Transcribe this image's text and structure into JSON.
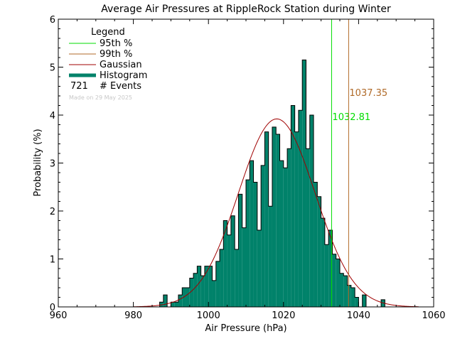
{
  "chart_data": {
    "type": "bar",
    "title": "Average Air Pressures at RippleRock Station during Winter",
    "xlabel": "Air Pressure (hPa)",
    "ylabel": "Probability (%)",
    "xlim": [
      960,
      1060
    ],
    "ylim": [
      0,
      6
    ],
    "x_ticks": [
      "960",
      "980",
      "1000",
      "1020",
      "1040",
      "1060"
    ],
    "y_ticks": [
      "0",
      "1",
      "2",
      "3",
      "4",
      "5",
      "6"
    ],
    "bin_width": 1,
    "histogram": [
      {
        "x": 987,
        "y": 0.1
      },
      {
        "x": 988,
        "y": 0.25
      },
      {
        "x": 989,
        "y": 0.0
      },
      {
        "x": 990,
        "y": 0.1
      },
      {
        "x": 991,
        "y": 0.1
      },
      {
        "x": 992,
        "y": 0.25
      },
      {
        "x": 993,
        "y": 0.4
      },
      {
        "x": 994,
        "y": 0.4
      },
      {
        "x": 995,
        "y": 0.6
      },
      {
        "x": 996,
        "y": 0.7
      },
      {
        "x": 997,
        "y": 0.85
      },
      {
        "x": 998,
        "y": 0.65
      },
      {
        "x": 999,
        "y": 0.85
      },
      {
        "x": 1000,
        "y": 0.85
      },
      {
        "x": 1001,
        "y": 0.55
      },
      {
        "x": 1002,
        "y": 0.95
      },
      {
        "x": 1003,
        "y": 1.2
      },
      {
        "x": 1004,
        "y": 1.8
      },
      {
        "x": 1005,
        "y": 1.5
      },
      {
        "x": 1006,
        "y": 1.9
      },
      {
        "x": 1007,
        "y": 1.2
      },
      {
        "x": 1008,
        "y": 2.35
      },
      {
        "x": 1009,
        "y": 1.65
      },
      {
        "x": 1010,
        "y": 2.65
      },
      {
        "x": 1011,
        "y": 3.05
      },
      {
        "x": 1012,
        "y": 2.6
      },
      {
        "x": 1013,
        "y": 1.6
      },
      {
        "x": 1014,
        "y": 2.95
      },
      {
        "x": 1015,
        "y": 3.65
      },
      {
        "x": 1016,
        "y": 2.1
      },
      {
        "x": 1017,
        "y": 3.75
      },
      {
        "x": 1018,
        "y": 3.6
      },
      {
        "x": 1019,
        "y": 3.05
      },
      {
        "x": 1020,
        "y": 2.9
      },
      {
        "x": 1021,
        "y": 3.3
      },
      {
        "x": 1022,
        "y": 4.2
      },
      {
        "x": 1023,
        "y": 3.65
      },
      {
        "x": 1024,
        "y": 4.1
      },
      {
        "x": 1025,
        "y": 5.15
      },
      {
        "x": 1026,
        "y": 3.3
      },
      {
        "x": 1027,
        "y": 4.0
      },
      {
        "x": 1028,
        "y": 2.6
      },
      {
        "x": 1029,
        "y": 2.3
      },
      {
        "x": 1030,
        "y": 1.85
      },
      {
        "x": 1031,
        "y": 1.3
      },
      {
        "x": 1032,
        "y": 1.6
      },
      {
        "x": 1033,
        "y": 1.1
      },
      {
        "x": 1034,
        "y": 1.0
      },
      {
        "x": 1035,
        "y": 0.7
      },
      {
        "x": 1036,
        "y": 0.65
      },
      {
        "x": 1037,
        "y": 0.45
      },
      {
        "x": 1038,
        "y": 0.4
      },
      {
        "x": 1039,
        "y": 0.2
      },
      {
        "x": 1040,
        "y": 0.0
      },
      {
        "x": 1041,
        "y": 0.25
      },
      {
        "x": 1042,
        "y": 0.0
      },
      {
        "x": 1043,
        "y": 0.0
      },
      {
        "x": 1044,
        "y": 0.0
      },
      {
        "x": 1045,
        "y": 0.0
      },
      {
        "x": 1046,
        "y": 0.15
      }
    ],
    "gaussian": {
      "mean": 1018.2,
      "sigma": 10.2,
      "peak": 3.92,
      "range": [
        980,
        1056
      ]
    },
    "percentile_lines": [
      {
        "x": 1032.81,
        "label": "1032.81",
        "label_y": 3.9,
        "color": "#00dd00"
      },
      {
        "x": 1037.35,
        "label": "1037.35",
        "label_y": 4.4,
        "color": "#b06a28"
      }
    ],
    "legend": {
      "title": "Legend",
      "entries": [
        {
          "label": "95th %",
          "color": "#00dd00",
          "kind": "line"
        },
        {
          "label": "99th %",
          "color": "#b06a28",
          "kind": "line"
        },
        {
          "label": "Gaussian",
          "color": "#a00000",
          "kind": "line"
        },
        {
          "label": "Histogram",
          "color": "#00826a",
          "kind": "thick"
        }
      ],
      "events_count": "721",
      "events_label": "# Events",
      "made_on": "Made on 29 May 2025"
    },
    "colors": {
      "histogram_fill": "#00826a",
      "histogram_stroke": "#000000",
      "gaussian": "#a00000"
    }
  }
}
